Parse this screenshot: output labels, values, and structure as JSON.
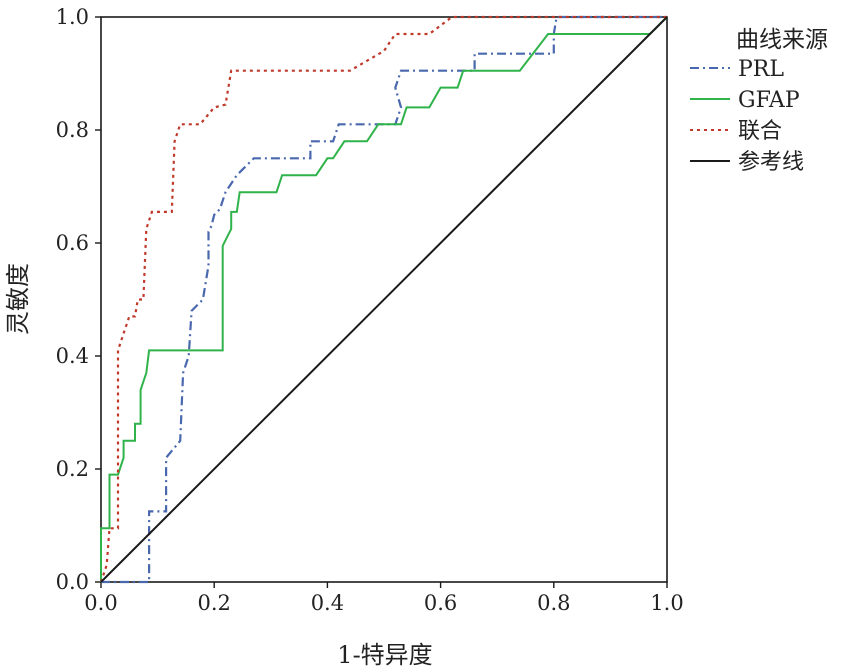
{
  "chart_data": {
    "type": "line",
    "title": "",
    "xlabel": "1-特异度",
    "ylabel": "灵敏度",
    "xlim": [
      0.0,
      1.0
    ],
    "ylim": [
      0.0,
      1.0
    ],
    "x_ticks": [
      "0.0",
      "0.2",
      "0.4",
      "0.6",
      "0.8",
      "1.0"
    ],
    "y_ticks": [
      "0.0",
      "0.2",
      "0.4",
      "0.6",
      "0.8",
      "1.0"
    ],
    "grid": false,
    "legend": {
      "title": "曲线来源",
      "placement": "right",
      "entries": [
        "PRL",
        "GFAP",
        "联合",
        "参考线"
      ]
    },
    "series": [
      {
        "name": "PRL",
        "color": "#4a68ad",
        "style": "dashdot",
        "points": [
          [
            0,
            0
          ],
          [
            0.085,
            0
          ],
          [
            0.085,
            0.125
          ],
          [
            0.115,
            0.125
          ],
          [
            0.115,
            0.22
          ],
          [
            0.14,
            0.25
          ],
          [
            0.145,
            0.37
          ],
          [
            0.155,
            0.4
          ],
          [
            0.16,
            0.48
          ],
          [
            0.18,
            0.5
          ],
          [
            0.19,
            0.56
          ],
          [
            0.19,
            0.62
          ],
          [
            0.195,
            0.63
          ],
          [
            0.2,
            0.65
          ],
          [
            0.21,
            0.66
          ],
          [
            0.22,
            0.69
          ],
          [
            0.24,
            0.72
          ],
          [
            0.27,
            0.75
          ],
          [
            0.37,
            0.75
          ],
          [
            0.37,
            0.78
          ],
          [
            0.41,
            0.78
          ],
          [
            0.42,
            0.81
          ],
          [
            0.52,
            0.81
          ],
          [
            0.53,
            0.84
          ],
          [
            0.52,
            0.875
          ],
          [
            0.53,
            0.905
          ],
          [
            0.66,
            0.905
          ],
          [
            0.66,
            0.935
          ],
          [
            0.8,
            0.935
          ],
          [
            0.8,
            0.97
          ],
          [
            0.805,
            1.0
          ],
          [
            1.0,
            1.0
          ]
        ]
      },
      {
        "name": "GFAP",
        "color": "#2fb34a",
        "style": "solid",
        "points": [
          [
            0,
            0
          ],
          [
            0,
            0.095
          ],
          [
            0.015,
            0.095
          ],
          [
            0.015,
            0.19
          ],
          [
            0.03,
            0.19
          ],
          [
            0.04,
            0.22
          ],
          [
            0.04,
            0.25
          ],
          [
            0.06,
            0.25
          ],
          [
            0.06,
            0.28
          ],
          [
            0.07,
            0.28
          ],
          [
            0.07,
            0.34
          ],
          [
            0.08,
            0.37
          ],
          [
            0.085,
            0.41
          ],
          [
            0.215,
            0.41
          ],
          [
            0.215,
            0.595
          ],
          [
            0.23,
            0.625
          ],
          [
            0.23,
            0.655
          ],
          [
            0.24,
            0.655
          ],
          [
            0.245,
            0.69
          ],
          [
            0.31,
            0.69
          ],
          [
            0.32,
            0.72
          ],
          [
            0.38,
            0.72
          ],
          [
            0.4,
            0.75
          ],
          [
            0.41,
            0.75
          ],
          [
            0.43,
            0.78
          ],
          [
            0.47,
            0.78
          ],
          [
            0.49,
            0.81
          ],
          [
            0.53,
            0.81
          ],
          [
            0.54,
            0.84
          ],
          [
            0.58,
            0.84
          ],
          [
            0.6,
            0.875
          ],
          [
            0.63,
            0.875
          ],
          [
            0.64,
            0.905
          ],
          [
            0.74,
            0.905
          ],
          [
            0.79,
            0.97
          ],
          [
            0.97,
            0.97
          ],
          [
            1.0,
            1.0
          ]
        ]
      },
      {
        "name": "联合",
        "color": "#c0392b",
        "style": "dotted",
        "points": [
          [
            0,
            0
          ],
          [
            0.01,
            0.03
          ],
          [
            0.015,
            0.095
          ],
          [
            0.03,
            0.095
          ],
          [
            0.03,
            0.41
          ],
          [
            0.04,
            0.44
          ],
          [
            0.05,
            0.47
          ],
          [
            0.06,
            0.47
          ],
          [
            0.065,
            0.5
          ],
          [
            0.075,
            0.5
          ],
          [
            0.08,
            0.625
          ],
          [
            0.09,
            0.655
          ],
          [
            0.125,
            0.655
          ],
          [
            0.13,
            0.78
          ],
          [
            0.14,
            0.81
          ],
          [
            0.175,
            0.81
          ],
          [
            0.2,
            0.84
          ],
          [
            0.22,
            0.845
          ],
          [
            0.23,
            0.905
          ],
          [
            0.44,
            0.905
          ],
          [
            0.5,
            0.94
          ],
          [
            0.52,
            0.97
          ],
          [
            0.58,
            0.97
          ],
          [
            0.62,
            1.0
          ],
          [
            1.0,
            1.0
          ]
        ]
      },
      {
        "name": "参考线",
        "color": "#1a1a1a",
        "style": "solid",
        "points": [
          [
            0,
            0
          ],
          [
            1,
            1
          ]
        ]
      }
    ]
  }
}
